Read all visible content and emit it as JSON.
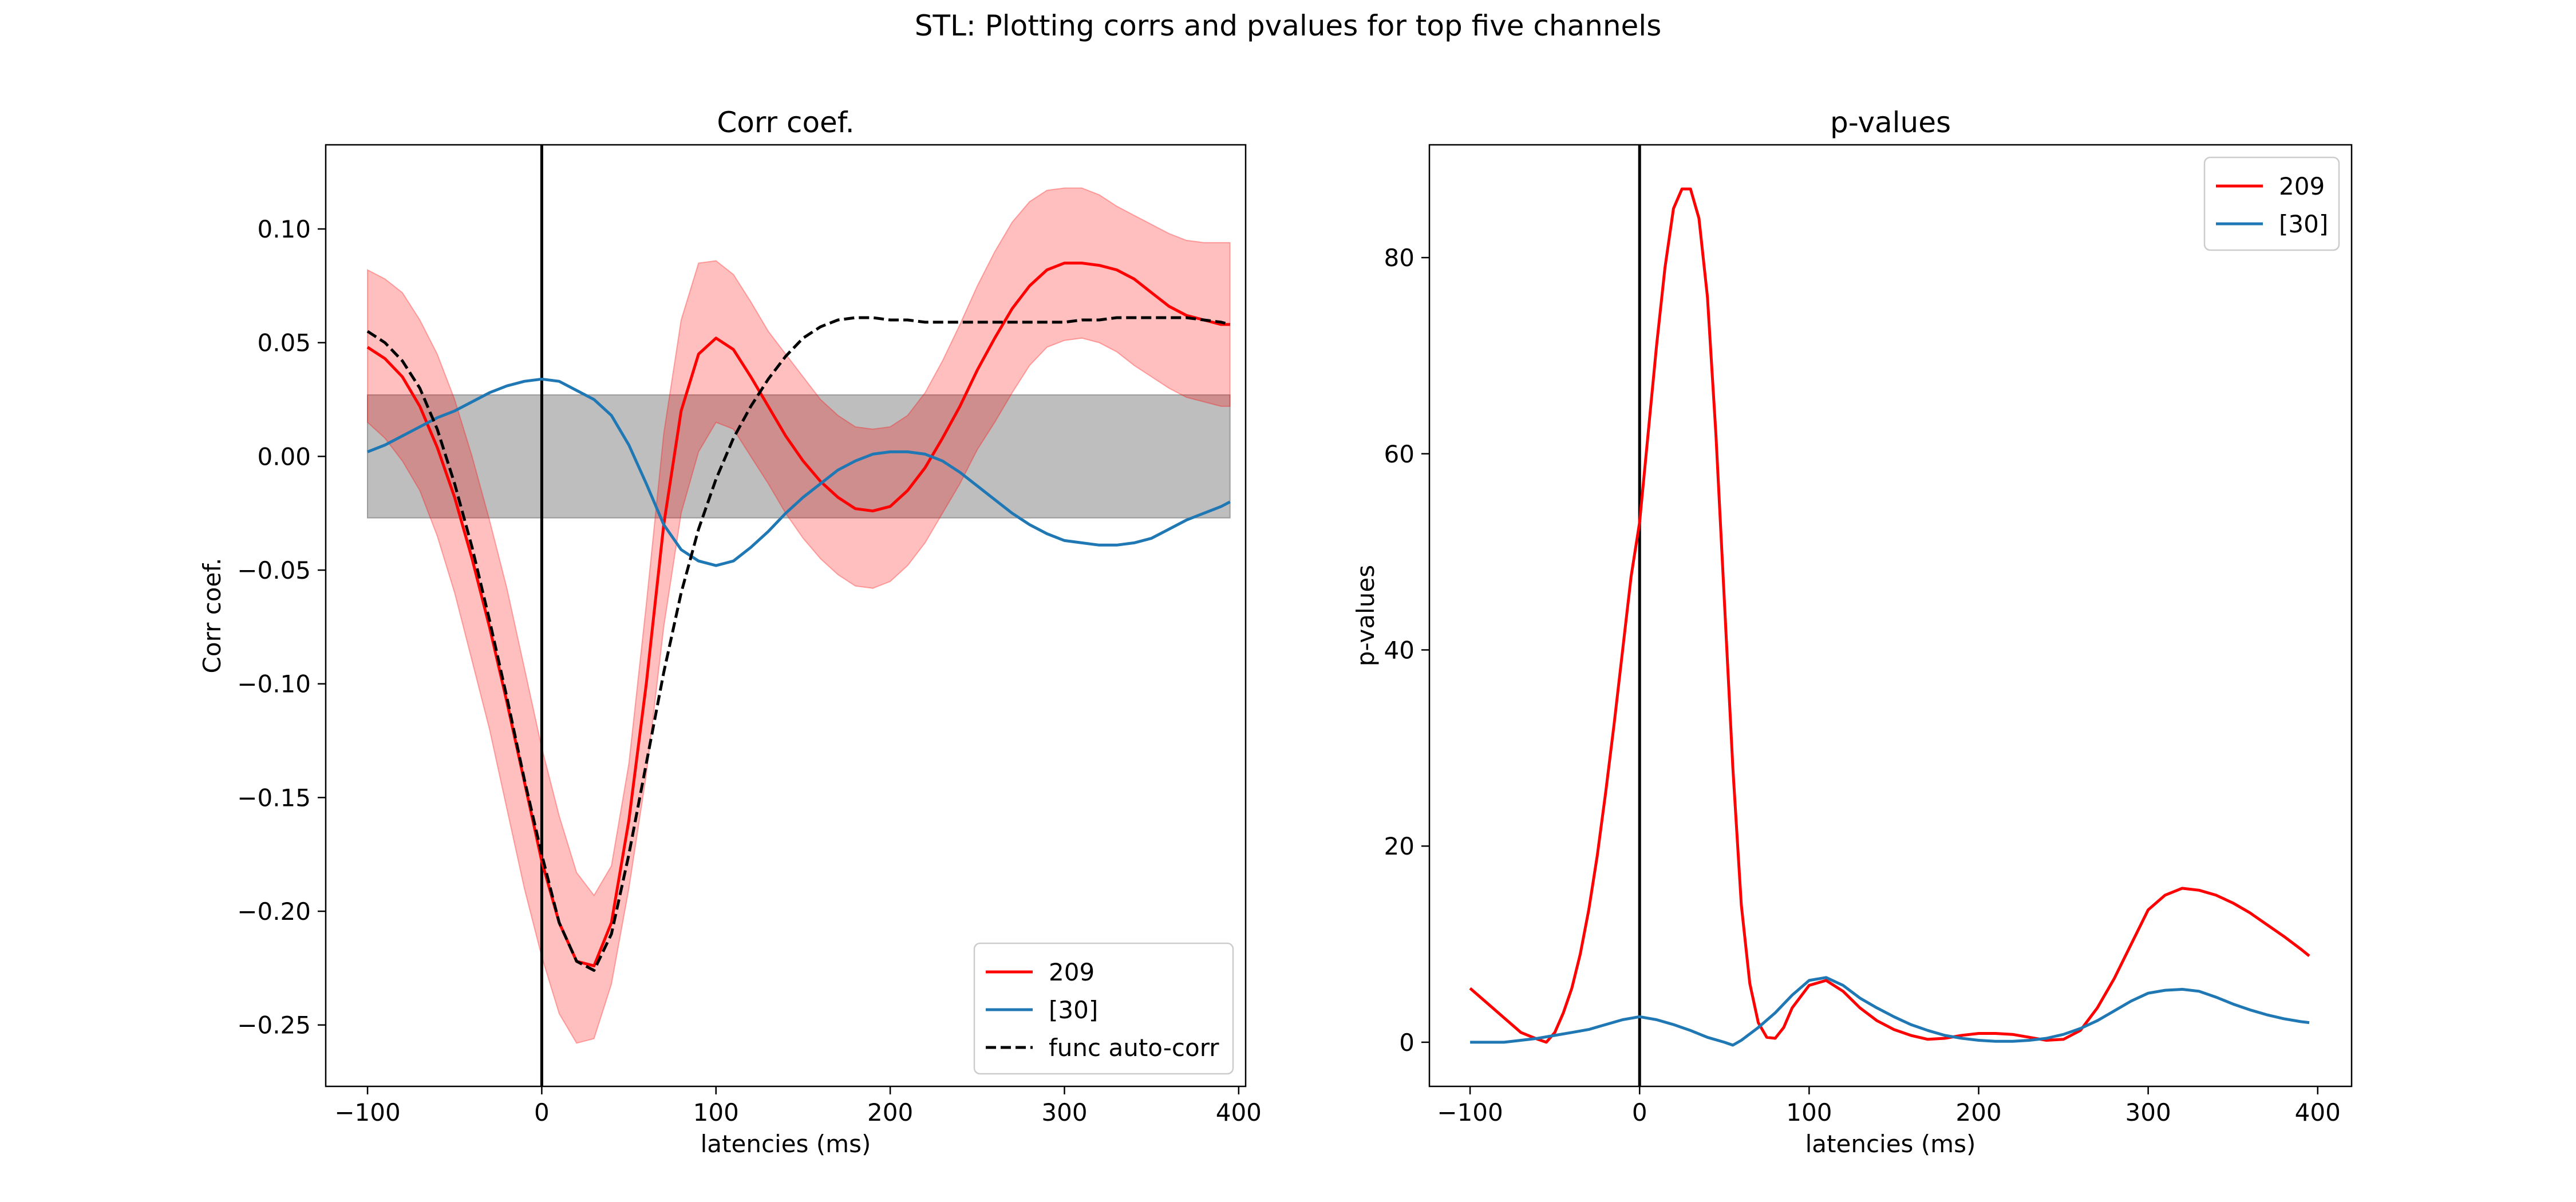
{
  "figure": {
    "suptitle": "STL: Plotting corrs and pvalues for top five channels"
  },
  "chart_data": [
    {
      "type": "line",
      "title": "Corr coef.",
      "xlabel": "latencies (ms)",
      "ylabel": "Corr coef.",
      "xlim": [
        -124,
        404
      ],
      "ylim": [
        -0.277,
        0.137
      ],
      "xticks": [
        -100,
        0,
        100,
        200,
        300,
        400
      ],
      "xtick_labels": [
        "−100",
        "0",
        "100",
        "200",
        "300",
        "400"
      ],
      "yticks": [
        0.1,
        0.05,
        0.0,
        -0.05,
        -0.1,
        -0.15,
        -0.2,
        -0.25
      ],
      "ytick_labels": [
        "0.10",
        "0.05",
        "0.00",
        "−0.05",
        "−0.10",
        "−0.15",
        "−0.20",
        "−0.25"
      ],
      "vline_x": 0,
      "null_band": {
        "x": [
          -100,
          395
        ],
        "y": [
          -0.027,
          0.027
        ],
        "color": "#bebebe"
      },
      "series": [
        {
          "name": "209",
          "color": "#ff0000",
          "style": "solid",
          "x": [
            -100,
            -90,
            -80,
            -70,
            -60,
            -50,
            -40,
            -30,
            -20,
            -10,
            0,
            10,
            20,
            30,
            40,
            50,
            60,
            70,
            80,
            90,
            100,
            110,
            120,
            130,
            140,
            150,
            160,
            170,
            180,
            190,
            200,
            210,
            220,
            230,
            240,
            250,
            260,
            270,
            280,
            290,
            300,
            310,
            320,
            330,
            340,
            350,
            360,
            370,
            380,
            390,
            395
          ],
          "y": [
            0.048,
            0.043,
            0.035,
            0.022,
            0.004,
            -0.018,
            -0.045,
            -0.075,
            -0.108,
            -0.143,
            -0.178,
            -0.205,
            -0.222,
            -0.224,
            -0.205,
            -0.16,
            -0.1,
            -0.03,
            0.02,
            0.045,
            0.052,
            0.047,
            0.035,
            0.022,
            0.009,
            -0.002,
            -0.011,
            -0.018,
            -0.023,
            -0.024,
            -0.022,
            -0.015,
            -0.005,
            0.008,
            0.022,
            0.038,
            0.052,
            0.065,
            0.075,
            0.082,
            0.085,
            0.085,
            0.084,
            0.082,
            0.078,
            0.072,
            0.066,
            0.062,
            0.06,
            0.058,
            0.058
          ],
          "band_upper": [
            0.082,
            0.078,
            0.072,
            0.06,
            0.045,
            0.025,
            0.0,
            -0.028,
            -0.058,
            -0.093,
            -0.128,
            -0.158,
            -0.183,
            -0.193,
            -0.18,
            -0.135,
            -0.065,
            0.01,
            0.06,
            0.085,
            0.086,
            0.08,
            0.068,
            0.055,
            0.045,
            0.035,
            0.025,
            0.018,
            0.013,
            0.012,
            0.013,
            0.018,
            0.028,
            0.042,
            0.058,
            0.075,
            0.09,
            0.103,
            0.112,
            0.117,
            0.118,
            0.118,
            0.115,
            0.11,
            0.106,
            0.102,
            0.098,
            0.095,
            0.094,
            0.094,
            0.094
          ],
          "band_lower": [
            0.015,
            0.008,
            -0.002,
            -0.015,
            -0.035,
            -0.06,
            -0.09,
            -0.12,
            -0.155,
            -0.19,
            -0.22,
            -0.245,
            -0.258,
            -0.256,
            -0.232,
            -0.19,
            -0.14,
            -0.075,
            -0.025,
            0.002,
            0.015,
            0.012,
            0.0,
            -0.012,
            -0.025,
            -0.036,
            -0.045,
            -0.052,
            -0.057,
            -0.058,
            -0.055,
            -0.048,
            -0.038,
            -0.025,
            -0.012,
            0.003,
            0.015,
            0.028,
            0.04,
            0.048,
            0.051,
            0.052,
            0.05,
            0.046,
            0.04,
            0.035,
            0.03,
            0.026,
            0.024,
            0.022,
            0.022
          ]
        },
        {
          "name": "[30]",
          "color": "#1f77b4",
          "style": "solid",
          "x": [
            -100,
            -90,
            -80,
            -70,
            -60,
            -50,
            -40,
            -30,
            -20,
            -10,
            0,
            10,
            20,
            30,
            40,
            50,
            60,
            70,
            80,
            90,
            100,
            110,
            120,
            130,
            140,
            150,
            160,
            170,
            180,
            190,
            200,
            210,
            220,
            230,
            240,
            250,
            260,
            270,
            280,
            290,
            300,
            310,
            320,
            330,
            340,
            350,
            360,
            370,
            380,
            390,
            395
          ],
          "y": [
            0.002,
            0.005,
            0.009,
            0.013,
            0.017,
            0.02,
            0.024,
            0.028,
            0.031,
            0.033,
            0.034,
            0.033,
            0.029,
            0.025,
            0.018,
            0.005,
            -0.012,
            -0.03,
            -0.041,
            -0.046,
            -0.048,
            -0.046,
            -0.04,
            -0.033,
            -0.025,
            -0.018,
            -0.012,
            -0.006,
            -0.002,
            0.001,
            0.002,
            0.002,
            0.001,
            -0.002,
            -0.007,
            -0.013,
            -0.019,
            -0.025,
            -0.03,
            -0.034,
            -0.037,
            -0.038,
            -0.039,
            -0.039,
            -0.038,
            -0.036,
            -0.032,
            -0.028,
            -0.025,
            -0.022,
            -0.02
          ]
        },
        {
          "name": "func auto-corr",
          "color": "#000000",
          "style": "dashed",
          "x": [
            -100,
            -90,
            -80,
            -70,
            -60,
            -50,
            -40,
            -30,
            -20,
            -10,
            0,
            10,
            20,
            30,
            40,
            50,
            60,
            70,
            80,
            90,
            100,
            110,
            120,
            130,
            140,
            150,
            160,
            170,
            180,
            190,
            200,
            210,
            220,
            230,
            240,
            250,
            260,
            270,
            280,
            290,
            300,
            310,
            320,
            330,
            340,
            350,
            360,
            370,
            380,
            390,
            395
          ],
          "y": [
            0.055,
            0.05,
            0.042,
            0.03,
            0.012,
            -0.012,
            -0.04,
            -0.072,
            -0.106,
            -0.142,
            -0.175,
            -0.205,
            -0.222,
            -0.226,
            -0.21,
            -0.175,
            -0.135,
            -0.095,
            -0.06,
            -0.032,
            -0.01,
            0.008,
            0.022,
            0.034,
            0.044,
            0.052,
            0.057,
            0.06,
            0.061,
            0.061,
            0.06,
            0.06,
            0.059,
            0.059,
            0.059,
            0.059,
            0.059,
            0.059,
            0.059,
            0.059,
            0.059,
            0.06,
            0.06,
            0.061,
            0.061,
            0.061,
            0.061,
            0.061,
            0.06,
            0.059,
            0.058
          ]
        }
      ],
      "legend": {
        "position": "lower-right",
        "entries": [
          "209",
          "[30]",
          "func auto-corr"
        ]
      }
    },
    {
      "type": "line",
      "title": "p-values",
      "xlabel": "latencies (ms)",
      "ylabel": "p-values",
      "xlim": [
        -124,
        420
      ],
      "ylim": [
        -4.5,
        91.5
      ],
      "xticks": [
        -100,
        0,
        100,
        200,
        300,
        400
      ],
      "xtick_labels": [
        "−100",
        "0",
        "100",
        "200",
        "300",
        "400"
      ],
      "yticks": [
        0,
        20,
        40,
        60,
        80
      ],
      "ytick_labels": [
        "0",
        "20",
        "40",
        "60",
        "80"
      ],
      "vline_x": 0,
      "series": [
        {
          "name": "209",
          "color": "#ff0000",
          "style": "solid",
          "x": [
            -100,
            -90,
            -80,
            -70,
            -60,
            -55,
            -50,
            -45,
            -40,
            -35,
            -30,
            -25,
            -20,
            -15,
            -10,
            -5,
            0,
            5,
            10,
            15,
            20,
            25,
            30,
            35,
            40,
            45,
            50,
            55,
            60,
            65,
            70,
            75,
            80,
            85,
            90,
            100,
            110,
            120,
            130,
            140,
            150,
            160,
            170,
            180,
            190,
            200,
            210,
            220,
            230,
            240,
            250,
            260,
            270,
            280,
            290,
            300,
            310,
            320,
            330,
            340,
            350,
            360,
            370,
            380,
            390,
            395
          ],
          "y": [
            5.5,
            4.0,
            2.5,
            1.0,
            0.3,
            0.0,
            1.0,
            3.0,
            5.5,
            9.0,
            13.5,
            19.0,
            25.5,
            32.5,
            40.0,
            47.5,
            53.0,
            62.0,
            71.0,
            79.0,
            85.0,
            87.0,
            87.0,
            84.0,
            76.0,
            62.0,
            45.0,
            28.0,
            14.0,
            6.0,
            2.0,
            0.5,
            0.4,
            1.5,
            3.5,
            5.8,
            6.3,
            5.2,
            3.5,
            2.2,
            1.3,
            0.7,
            0.3,
            0.4,
            0.7,
            0.9,
            0.9,
            0.8,
            0.5,
            0.2,
            0.3,
            1.2,
            3.5,
            6.5,
            10.0,
            13.5,
            15.0,
            15.7,
            15.5,
            15.0,
            14.2,
            13.2,
            12.0,
            10.8,
            9.5,
            8.8
          ]
        },
        {
          "name": "[30]",
          "color": "#1f77b4",
          "style": "solid",
          "x": [
            -100,
            -90,
            -80,
            -70,
            -60,
            -50,
            -40,
            -30,
            -20,
            -10,
            0,
            10,
            20,
            30,
            40,
            50,
            55,
            60,
            70,
            80,
            90,
            100,
            110,
            120,
            130,
            140,
            150,
            160,
            170,
            180,
            190,
            200,
            210,
            220,
            230,
            240,
            250,
            260,
            270,
            280,
            290,
            300,
            310,
            320,
            330,
            340,
            350,
            360,
            370,
            380,
            390,
            395
          ],
          "y": [
            0.0,
            0.0,
            0.0,
            0.2,
            0.4,
            0.7,
            1.0,
            1.3,
            1.8,
            2.3,
            2.6,
            2.3,
            1.8,
            1.2,
            0.5,
            0.0,
            -0.3,
            0.2,
            1.5,
            3.0,
            4.8,
            6.3,
            6.6,
            5.8,
            4.5,
            3.5,
            2.6,
            1.8,
            1.2,
            0.7,
            0.4,
            0.2,
            0.1,
            0.1,
            0.2,
            0.4,
            0.8,
            1.4,
            2.2,
            3.2,
            4.2,
            5.0,
            5.3,
            5.4,
            5.2,
            4.6,
            3.9,
            3.3,
            2.8,
            2.4,
            2.1,
            2.0
          ]
        }
      ],
      "legend": {
        "position": "upper-right",
        "entries": [
          "209",
          "[30]"
        ]
      }
    }
  ]
}
